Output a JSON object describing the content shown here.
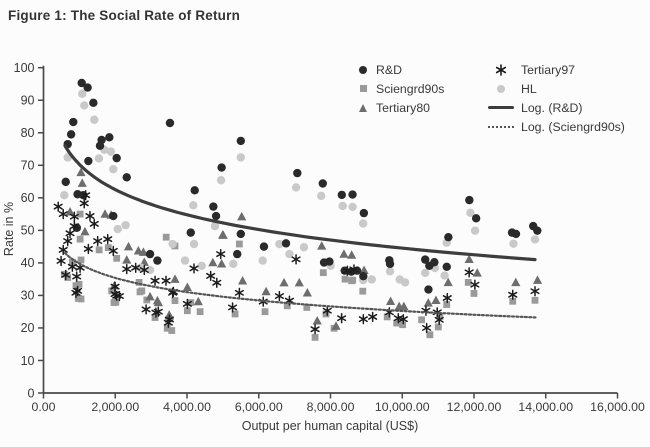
{
  "figure": {
    "title": "Figure 1: The Social Rate of Return"
  },
  "chart_data": {
    "type": "scatter",
    "title": "Figure 1: The Social Rate of Return",
    "xlabel": "Output per human capital (US$)",
    "ylabel": "Rate in %",
    "xlim": [
      0,
      16000
    ],
    "ylim": [
      0,
      100
    ],
    "grid": false,
    "legend_position": "top-center-inside, two columns, no border",
    "x_tick_labels": [
      "0.00",
      "2,000.00",
      "4,000.00",
      "6,000.00",
      "8,000.00",
      "10,000.00",
      "12,000.00",
      "14,000.00",
      "16,000.00"
    ],
    "y_tick_labels": [
      "0",
      "10",
      "20",
      "30",
      "40",
      "50",
      "60",
      "70",
      "80",
      "90",
      "100"
    ],
    "series": [
      {
        "name": "R&D",
        "marker": "circle",
        "color": "#2a2a2a",
        "points": [
          [
            620,
            64.9
          ],
          [
            675,
            76.5
          ],
          [
            770,
            79.5
          ],
          [
            830,
            83.3
          ],
          [
            930,
            50.8
          ],
          [
            950,
            61.1
          ],
          [
            1065,
            95.3
          ],
          [
            1110,
            60.8
          ],
          [
            1230,
            93.9
          ],
          [
            1250,
            71.3
          ],
          [
            1390,
            89.2
          ],
          [
            1575,
            76.0
          ],
          [
            1620,
            77.8
          ],
          [
            1835,
            78.6
          ],
          [
            1945,
            54.4
          ],
          [
            2040,
            72.2
          ],
          [
            2320,
            66.3
          ],
          [
            2970,
            42.7
          ],
          [
            3175,
            40.7
          ],
          [
            3525,
            83.0
          ],
          [
            4105,
            49.3
          ],
          [
            4215,
            62.3
          ],
          [
            4735,
            57.3
          ],
          [
            4810,
            54.4
          ],
          [
            4965,
            69.3
          ],
          [
            5400,
            42.7
          ],
          [
            5500,
            77.5
          ],
          [
            5500,
            48.9
          ],
          [
            6145,
            45.0
          ],
          [
            6760,
            46.0
          ],
          [
            7075,
            67.6
          ],
          [
            7785,
            64.4
          ],
          [
            7820,
            40.1
          ],
          [
            7970,
            40.4
          ],
          [
            8315,
            60.9
          ],
          [
            8395,
            37.6
          ],
          [
            8580,
            37.3
          ],
          [
            8615,
            61.0
          ],
          [
            8740,
            37.6
          ],
          [
            8915,
            35.9
          ],
          [
            8930,
            55.3
          ],
          [
            9640,
            40.8
          ],
          [
            9660,
            39.7
          ],
          [
            10640,
            41.0
          ],
          [
            10730,
            31.8
          ],
          [
            10755,
            39.1
          ],
          [
            10895,
            40.2
          ],
          [
            11240,
            38.8
          ],
          [
            11285,
            47.9
          ],
          [
            11870,
            59.3
          ],
          [
            12060,
            53.7
          ],
          [
            13060,
            49.3
          ],
          [
            13170,
            48.9
          ],
          [
            13650,
            51.3
          ],
          [
            13765,
            49.9
          ]
        ]
      },
      {
        "name": "Sciengrd90s",
        "marker": "square",
        "color": "#9a9a9a",
        "points": [
          [
            580,
            36.5
          ],
          [
            675,
            35.5
          ],
          [
            805,
            40.2
          ],
          [
            905,
            33.0
          ],
          [
            970,
            29.1
          ],
          [
            990,
            33.4
          ],
          [
            1020,
            55.0
          ],
          [
            1020,
            47.3
          ],
          [
            1045,
            40.9
          ],
          [
            1045,
            28.9
          ],
          [
            1550,
            44.0
          ],
          [
            1805,
            44.7
          ],
          [
            1900,
            31.4
          ],
          [
            1965,
            27.8
          ],
          [
            2015,
            27.9
          ],
          [
            2040,
            41.4
          ],
          [
            2665,
            34.0
          ],
          [
            2690,
            31.1
          ],
          [
            2740,
            31.4
          ],
          [
            2880,
            28.6
          ],
          [
            3110,
            23.2
          ],
          [
            3420,
            47.9
          ],
          [
            3450,
            19.9
          ],
          [
            3575,
            19.2
          ],
          [
            3665,
            45.2
          ],
          [
            3665,
            28.4
          ],
          [
            4010,
            25.3
          ],
          [
            4105,
            27.8
          ],
          [
            4365,
            25.0
          ],
          [
            5340,
            24.3
          ],
          [
            5460,
            45.8
          ],
          [
            6175,
            25.0
          ],
          [
            6795,
            26.8
          ],
          [
            7340,
            26.3
          ],
          [
            7570,
            17.1
          ],
          [
            7800,
            37.0
          ],
          [
            7875,
            24.3
          ],
          [
            8100,
            19.9
          ],
          [
            8405,
            35.0
          ],
          [
            8590,
            34.5
          ],
          [
            8620,
            34.7
          ],
          [
            8900,
            31.3
          ],
          [
            9580,
            23.4
          ],
          [
            9845,
            21.5
          ],
          [
            10010,
            21.0
          ],
          [
            10540,
            22.5
          ],
          [
            10770,
            17.9
          ],
          [
            11005,
            20.3
          ],
          [
            11050,
            23.5
          ],
          [
            11240,
            27.2
          ],
          [
            11840,
            34.0
          ],
          [
            12000,
            30.6
          ],
          [
            13080,
            28.2
          ],
          [
            13700,
            28.5
          ]
        ]
      },
      {
        "name": "Tertiary80",
        "marker": "triangle",
        "color": "#6d6d6d",
        "points": [
          [
            740,
            55.7
          ],
          [
            1045,
            67.8
          ],
          [
            1080,
            64.5
          ],
          [
            1155,
            49.6
          ],
          [
            1715,
            55.0
          ],
          [
            1885,
            54.7
          ],
          [
            1975,
            33.0
          ],
          [
            2320,
            40.9
          ],
          [
            2370,
            45.0
          ],
          [
            2645,
            43.7
          ],
          [
            2785,
            43.3
          ],
          [
            2810,
            40.2
          ],
          [
            2970,
            29.6
          ],
          [
            3175,
            28.4
          ],
          [
            3200,
            27.8
          ],
          [
            3505,
            24.0
          ],
          [
            3510,
            23.7
          ],
          [
            3665,
            35.0
          ],
          [
            4010,
            32.5
          ],
          [
            4315,
            28.1
          ],
          [
            4720,
            40.1
          ],
          [
            4965,
            39.7
          ],
          [
            4995,
            48.6
          ],
          [
            5010,
            48.5
          ],
          [
            5525,
            54.2
          ],
          [
            5550,
            34.5
          ],
          [
            6205,
            31.2
          ],
          [
            6705,
            33.9
          ],
          [
            7130,
            33.9
          ],
          [
            7355,
            30.8
          ],
          [
            7630,
            22.2
          ],
          [
            7755,
            45.2
          ],
          [
            8155,
            20.6
          ],
          [
            8375,
            42.7
          ],
          [
            8590,
            42.4
          ],
          [
            8935,
            37.7
          ],
          [
            9675,
            28.2
          ],
          [
            9915,
            26.6
          ],
          [
            10045,
            26.6
          ],
          [
            10725,
            27.7
          ],
          [
            10940,
            28.5
          ],
          [
            11280,
            34.0
          ],
          [
            11865,
            41.1
          ],
          [
            12090,
            36.9
          ],
          [
            13165,
            34.0
          ],
          [
            13770,
            34.7
          ]
        ]
      },
      {
        "name": "Tertiary97",
        "marker": "asterisk",
        "color": "#1c1c1c",
        "points": [
          [
            410,
            57.3
          ],
          [
            490,
            40.6
          ],
          [
            550,
            55.0
          ],
          [
            550,
            44.0
          ],
          [
            620,
            36.3
          ],
          [
            675,
            46.7
          ],
          [
            740,
            49.1
          ],
          [
            805,
            38.8
          ],
          [
            860,
            54.2
          ],
          [
            860,
            51.3
          ],
          [
            905,
            30.8
          ],
          [
            925,
            35.8
          ],
          [
            950,
            31.4
          ],
          [
            1020,
            38.5
          ],
          [
            1135,
            58.3
          ],
          [
            1175,
            60.8
          ],
          [
            1250,
            44.3
          ],
          [
            1295,
            54.4
          ],
          [
            1415,
            52.0
          ],
          [
            1510,
            46.7
          ],
          [
            1790,
            47.3
          ],
          [
            1945,
            43.7
          ],
          [
            1995,
            32.7
          ],
          [
            1995,
            30.4
          ],
          [
            2040,
            29.9
          ],
          [
            2115,
            29.8
          ],
          [
            2320,
            38.1
          ],
          [
            2570,
            38.5
          ],
          [
            2810,
            37.8
          ],
          [
            2860,
            25.7
          ],
          [
            3110,
            34.5
          ],
          [
            3135,
            24.7
          ],
          [
            3200,
            25.0
          ],
          [
            3415,
            34.5
          ],
          [
            3480,
            21.6
          ],
          [
            3510,
            22.6
          ],
          [
            3600,
            30.8
          ],
          [
            3620,
            31.1
          ],
          [
            4010,
            27.4
          ],
          [
            4195,
            38.3
          ],
          [
            4660,
            36.0
          ],
          [
            4830,
            33.9
          ],
          [
            4940,
            42.7
          ],
          [
            5270,
            26.3
          ],
          [
            5460,
            30.8
          ],
          [
            6125,
            28.1
          ],
          [
            6575,
            29.8
          ],
          [
            6855,
            28.4
          ],
          [
            7040,
            41.1
          ],
          [
            7570,
            19.6
          ],
          [
            7910,
            25.3
          ],
          [
            8310,
            23.0
          ],
          [
            8470,
            37.6
          ],
          [
            8655,
            38.0
          ],
          [
            8915,
            22.7
          ],
          [
            9175,
            23.4
          ],
          [
            9640,
            24.8
          ],
          [
            9890,
            23.0
          ],
          [
            10030,
            22.7
          ],
          [
            10660,
            25.3
          ],
          [
            10680,
            20.0
          ],
          [
            10975,
            24.8
          ],
          [
            11030,
            22.5
          ],
          [
            11255,
            29.2
          ],
          [
            11865,
            37.1
          ],
          [
            12025,
            33.3
          ],
          [
            13080,
            30.2
          ],
          [
            13700,
            31.3
          ]
        ]
      },
      {
        "name": "HL",
        "marker": "circle",
        "color": "#c9c9c9",
        "points": [
          [
            580,
            60.8
          ],
          [
            675,
            72.4
          ],
          [
            1080,
            92.0
          ],
          [
            1135,
            88.4
          ],
          [
            1415,
            84.0
          ],
          [
            1545,
            72.1
          ],
          [
            1695,
            74.8
          ],
          [
            1880,
            74.2
          ],
          [
            1945,
            68.8
          ],
          [
            2070,
            50.4
          ],
          [
            2290,
            51.6
          ],
          [
            2715,
            38.5
          ],
          [
            2970,
            37.8
          ],
          [
            3600,
            45.8
          ],
          [
            3945,
            40.7
          ],
          [
            4175,
            57.7
          ],
          [
            4195,
            45.8
          ],
          [
            4410,
            39.1
          ],
          [
            4780,
            51.3
          ],
          [
            4950,
            65.4
          ],
          [
            5290,
            39.7
          ],
          [
            5500,
            72.4
          ],
          [
            6110,
            40.7
          ],
          [
            6575,
            45.8
          ],
          [
            6855,
            42.7
          ],
          [
            7040,
            63.2
          ],
          [
            7260,
            44.8
          ],
          [
            7740,
            60.6
          ],
          [
            8005,
            39.1
          ],
          [
            8340,
            57.5
          ],
          [
            8615,
            57.2
          ],
          [
            8910,
            52.1
          ],
          [
            8910,
            34.7
          ],
          [
            9150,
            34.9
          ],
          [
            9660,
            37.4
          ],
          [
            9930,
            34.9
          ],
          [
            10080,
            34.0
          ],
          [
            10640,
            36.9
          ],
          [
            10910,
            38.4
          ],
          [
            11180,
            36.1
          ],
          [
            11240,
            46.2
          ],
          [
            11900,
            55.4
          ],
          [
            12030,
            49.9
          ],
          [
            13100,
            45.9
          ],
          [
            13700,
            47.2
          ]
        ]
      }
    ],
    "trendlines": [
      {
        "name": "Log. (R&D)",
        "style": "solid",
        "color": "#3d3d3d",
        "width": 3.2,
        "start": {
          "x": 600,
          "y": 76
        },
        "end": {
          "x": 13700,
          "y": 41
        }
      },
      {
        "name": "Log. (Sciengrd90s)",
        "style": "dotted",
        "color": "#555555",
        "width": 2.2,
        "start": {
          "x": 600,
          "y": 43
        },
        "end": {
          "x": 13750,
          "y": 23.2
        }
      }
    ],
    "legend": [
      {
        "label": "R&D"
      },
      {
        "label": "Sciengrd90s"
      },
      {
        "label": "Tertiary80"
      },
      {
        "label": "Tertiary97"
      },
      {
        "label": "HL"
      },
      {
        "label": "Log. (R&D)"
      },
      {
        "label": "Log. (Sciengrd90s)"
      }
    ]
  }
}
